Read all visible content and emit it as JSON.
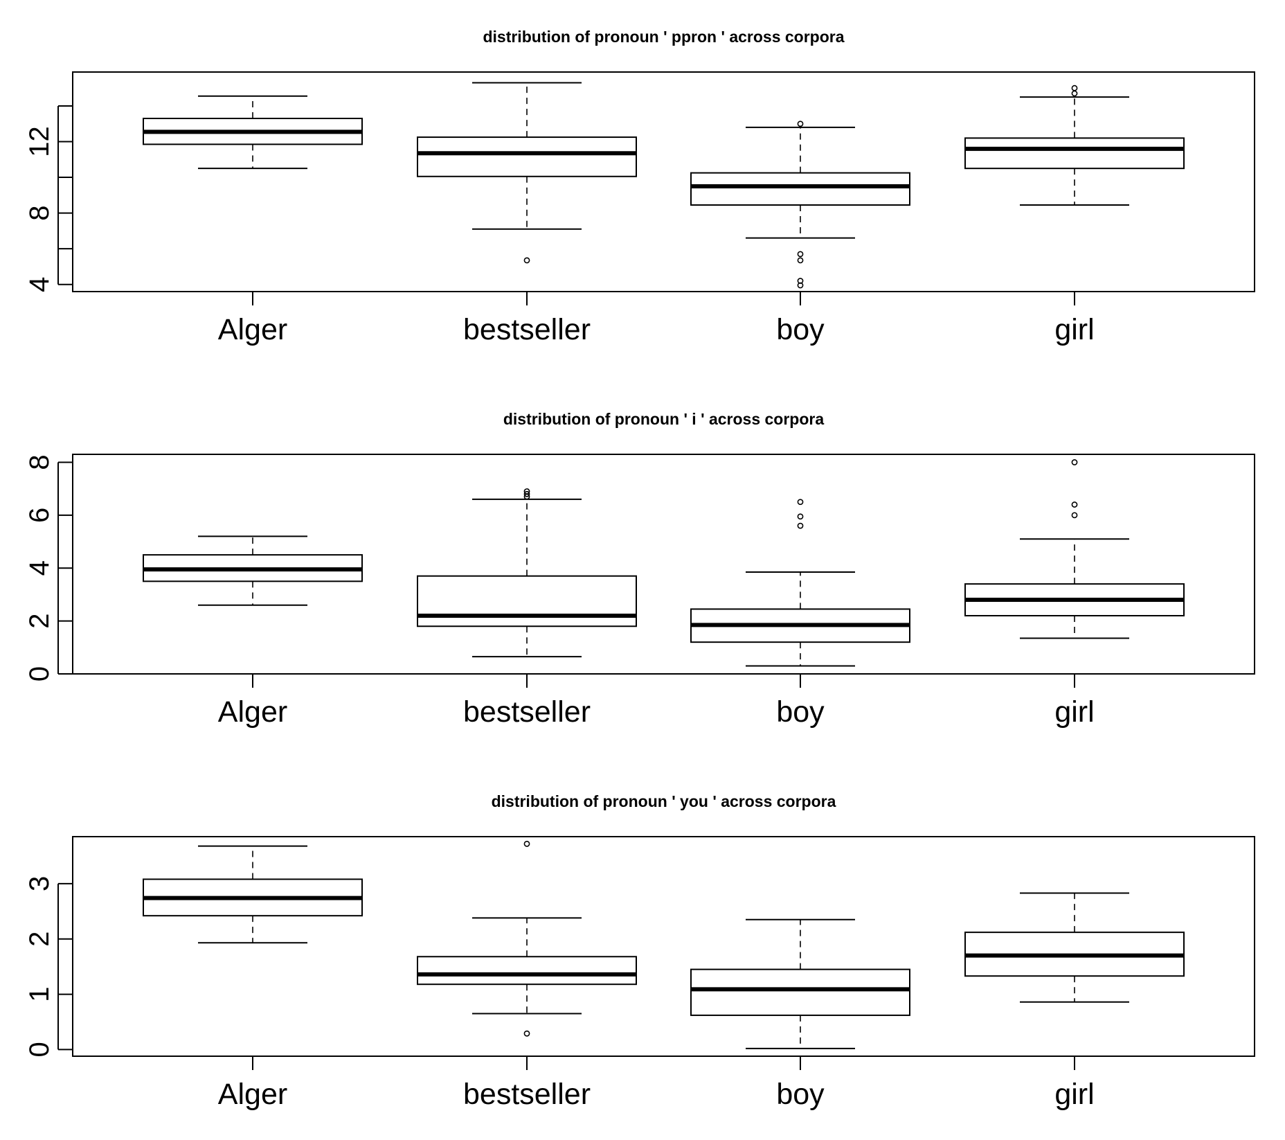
{
  "chart_data": [
    {
      "type": "box",
      "title": "distribution of pronoun ' ppron ' across corpora",
      "categories": [
        "Alger",
        "bestseller",
        "boy",
        "girl"
      ],
      "ylim": [
        3.6,
        15.9
      ],
      "yticks": [
        4,
        6,
        8,
        10,
        12,
        14
      ],
      "ytick_labels": [
        "4",
        "",
        "8",
        "",
        "12",
        ""
      ],
      "boxes": [
        {
          "category": "Alger",
          "whisker_low": 10.5,
          "q1": 11.85,
          "median": 12.55,
          "q3": 13.3,
          "whisker_high": 14.55,
          "outliers": []
        },
        {
          "category": "bestseller",
          "whisker_low": 7.1,
          "q1": 10.05,
          "median": 11.35,
          "q3": 12.25,
          "whisker_high": 15.3,
          "outliers": [
            5.35
          ]
        },
        {
          "category": "boy",
          "whisker_low": 6.6,
          "q1": 8.45,
          "median": 9.5,
          "q3": 10.25,
          "whisker_high": 12.8,
          "outliers": [
            13.0,
            5.7,
            5.35,
            4.2,
            3.95
          ]
        },
        {
          "category": "girl",
          "whisker_low": 8.45,
          "q1": 10.5,
          "median": 11.6,
          "q3": 12.2,
          "whisker_high": 14.5,
          "outliers": [
            15.0,
            14.7
          ]
        }
      ]
    },
    {
      "type": "box",
      "title": "distribution of pronoun ' i ' across corpora",
      "categories": [
        "Alger",
        "bestseller",
        "boy",
        "girl"
      ],
      "ylim": [
        0,
        8.3
      ],
      "yticks": [
        0,
        2,
        4,
        6,
        8
      ],
      "ytick_labels": [
        "0",
        "2",
        "4",
        "6",
        "8"
      ],
      "boxes": [
        {
          "category": "Alger",
          "whisker_low": 2.6,
          "q1": 3.5,
          "median": 3.95,
          "q3": 4.5,
          "whisker_high": 5.2,
          "outliers": []
        },
        {
          "category": "bestseller",
          "whisker_low": 0.65,
          "q1": 1.8,
          "median": 2.2,
          "q3": 3.7,
          "whisker_high": 6.6,
          "outliers": [
            6.7,
            6.8,
            6.9
          ]
        },
        {
          "category": "boy",
          "whisker_low": 0.3,
          "q1": 1.2,
          "median": 1.85,
          "q3": 2.45,
          "whisker_high": 3.85,
          "outliers": [
            6.5,
            5.95,
            5.6
          ]
        },
        {
          "category": "girl",
          "whisker_low": 1.35,
          "q1": 2.2,
          "median": 2.8,
          "q3": 3.4,
          "whisker_high": 5.1,
          "outliers": [
            8.0,
            6.4,
            6.0
          ]
        }
      ]
    },
    {
      "type": "box",
      "title": "distribution of pronoun ' you ' across corpora",
      "categories": [
        "Alger",
        "bestseller",
        "boy",
        "girl"
      ],
      "ylim": [
        -0.12,
        3.85
      ],
      "yticks": [
        0,
        1,
        2,
        3
      ],
      "ytick_labels": [
        "0",
        "1",
        "2",
        "3"
      ],
      "boxes": [
        {
          "category": "Alger",
          "whisker_low": 1.93,
          "q1": 2.42,
          "median": 2.74,
          "q3": 3.08,
          "whisker_high": 3.68,
          "outliers": []
        },
        {
          "category": "bestseller",
          "whisker_low": 0.65,
          "q1": 1.18,
          "median": 1.36,
          "q3": 1.68,
          "whisker_high": 2.38,
          "outliers": [
            3.72,
            0.29
          ]
        },
        {
          "category": "boy",
          "whisker_low": 0.02,
          "q1": 0.62,
          "median": 1.09,
          "q3": 1.45,
          "whisker_high": 2.35,
          "outliers": []
        },
        {
          "category": "girl",
          "whisker_low": 0.86,
          "q1": 1.33,
          "median": 1.7,
          "q3": 2.12,
          "whisker_high": 2.83,
          "outliers": []
        }
      ]
    }
  ]
}
